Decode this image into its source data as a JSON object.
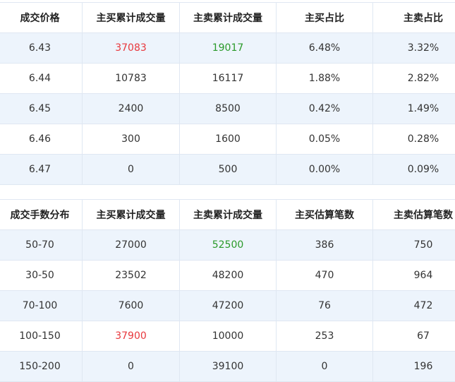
{
  "price_table": {
    "headers": [
      "成交价格",
      "主买累计成交量",
      "主卖累计成交量",
      "主买占比",
      "主卖占比"
    ],
    "rows": [
      [
        "6.43",
        "37083",
        "19017",
        "6.48%",
        "3.32%"
      ],
      [
        "6.44",
        "10783",
        "16117",
        "1.88%",
        "2.82%"
      ],
      [
        "6.45",
        "2400",
        "8500",
        "0.42%",
        "1.49%"
      ],
      [
        "6.46",
        "300",
        "1600",
        "0.05%",
        "0.28%"
      ],
      [
        "6.47",
        "0",
        "500",
        "0.00%",
        "0.09%"
      ]
    ]
  },
  "lot_table": {
    "headers": [
      "成交手数分布",
      "主买累计成交量",
      "主卖累计成交量",
      "主买估算笔数",
      "主卖估算笔数"
    ],
    "rows": [
      [
        "50-70",
        "27000",
        "52500",
        "386",
        "750"
      ],
      [
        "30-50",
        "23502",
        "48200",
        "470",
        "964"
      ],
      [
        "70-100",
        "7600",
        "47200",
        "76",
        "472"
      ],
      [
        "100-150",
        "37900",
        "10000",
        "253",
        "67"
      ],
      [
        "150-200",
        "0",
        "39100",
        "0",
        "196"
      ]
    ]
  },
  "colors": {
    "highlight_red": "#e8383d",
    "highlight_green": "#2a9a2a",
    "row_alt_bg": "#edf4fc",
    "border": "#dfe7f2"
  }
}
